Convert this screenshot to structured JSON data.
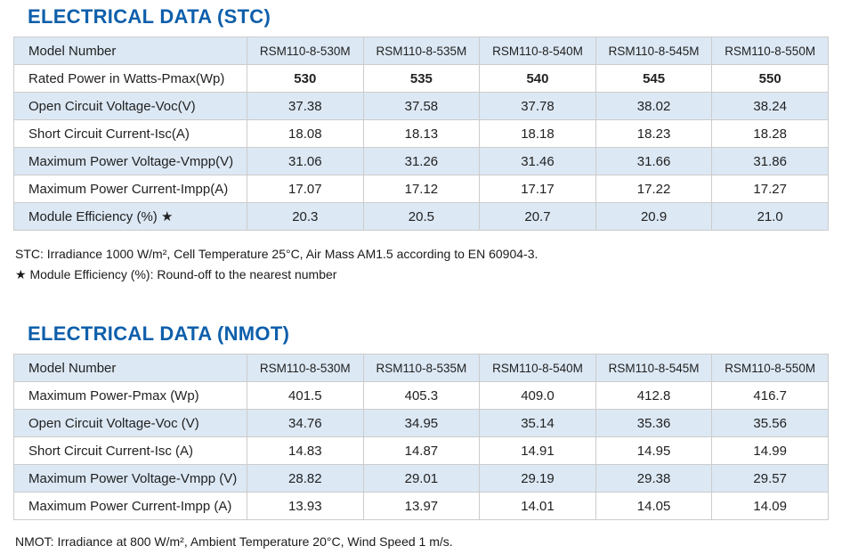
{
  "colors": {
    "accent_blue": "#0e5fab",
    "row_alt": "#dce8f4",
    "border": "#cccccc"
  },
  "stc": {
    "title": "ELECTRICAL DATA (STC)",
    "header": {
      "label": "Model Number",
      "models": [
        "RSM110-8-530M",
        "RSM110-8-535M",
        "RSM110-8-540M",
        "RSM110-8-545M",
        "RSM110-8-550M"
      ]
    },
    "rows": [
      {
        "label": "Rated Power in Watts-Pmax(Wp)",
        "values": [
          "530",
          "535",
          "540",
          "545",
          "550"
        ]
      },
      {
        "label": "Open Circuit Voltage-Voc(V)",
        "values": [
          "37.38",
          "37.58",
          "37.78",
          "38.02",
          "38.24"
        ]
      },
      {
        "label": "Short Circuit Current-Isc(A)",
        "values": [
          "18.08",
          "18.13",
          "18.18",
          "18.23",
          "18.28"
        ]
      },
      {
        "label": "Maximum Power Voltage-Vmpp(V)",
        "values": [
          "31.06",
          "31.26",
          "31.46",
          "31.66",
          "31.86"
        ]
      },
      {
        "label": "Maximum Power Current-Impp(A)",
        "values": [
          "17.07",
          "17.12",
          "17.17",
          "17.22",
          "17.27"
        ]
      },
      {
        "label": "Module Efficiency (%) ★",
        "values": [
          "20.3",
          "20.5",
          "20.7",
          "20.9",
          "21.0"
        ]
      }
    ],
    "footnote1": "STC: Irradiance 1000 W/m², Cell Temperature 25°C, Air Mass AM1.5 according to EN 60904-3.",
    "footnote2": "★ Module Efficiency (%): Round-off to the nearest number"
  },
  "nmot": {
    "title": "ELECTRICAL DATA (NMOT)",
    "header": {
      "label": "Model Number",
      "models": [
        "RSM110-8-530M",
        "RSM110-8-535M",
        "RSM110-8-540M",
        "RSM110-8-545M",
        "RSM110-8-550M"
      ]
    },
    "rows": [
      {
        "label": "Maximum Power-Pmax (Wp)",
        "values": [
          "401.5",
          "405.3",
          "409.0",
          "412.8",
          "416.7"
        ]
      },
      {
        "label": "Open Circuit Voltage-Voc (V)",
        "values": [
          "34.76",
          "34.95",
          "35.14",
          "35.36",
          "35.56"
        ]
      },
      {
        "label": "Short Circuit Current-Isc (A)",
        "values": [
          "14.83",
          "14.87",
          "14.91",
          "14.95",
          "14.99"
        ]
      },
      {
        "label": "Maximum Power Voltage-Vmpp (V)",
        "values": [
          "28.82",
          "29.01",
          "29.19",
          "29.38",
          "29.57"
        ]
      },
      {
        "label": "Maximum Power Current-Impp (A)",
        "values": [
          "13.93",
          "13.97",
          "14.01",
          "14.05",
          "14.09"
        ]
      }
    ],
    "footnote1": "NMOT: Irradiance at 800 W/m², Ambient Temperature 20°C, Wind Speed 1 m/s."
  }
}
